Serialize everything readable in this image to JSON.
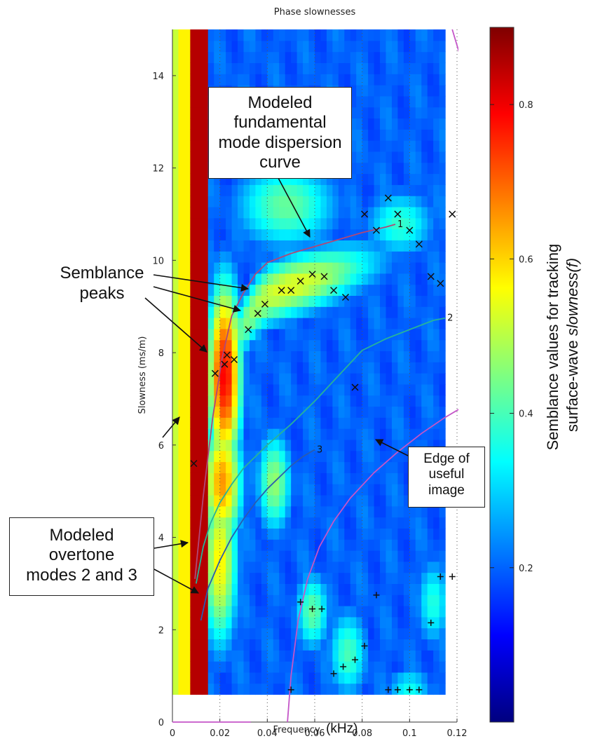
{
  "chart_data": {
    "type": "heatmap",
    "title": "Phase slownesses",
    "xlabel_main": "Frequency",
    "xlabel_unit": "(kHz)",
    "ylabel": "Slowness (ms/m)",
    "xlim": [
      0,
      0.12
    ],
    "ylim": [
      0,
      15
    ],
    "xticks": [
      "0",
      "0.02",
      "0.04",
      "0.06",
      "0.08",
      "0.1",
      "0.12"
    ],
    "yticks": [
      "0",
      "2",
      "4",
      "6",
      "8",
      "10",
      "12",
      "14"
    ],
    "colorbar": {
      "range": [
        0,
        0.9
      ],
      "ticks": [
        "0.2",
        "0.4",
        "0.6",
        "0.8"
      ],
      "colormap": "jet",
      "label_line1": "Semblance values for tracking",
      "label_line2_prefix": "surface-wave ",
      "label_line2_italic": "slowness(f)"
    },
    "data_extent": {
      "x": [
        0,
        0.115
      ],
      "y": [
        0.6,
        15
      ]
    },
    "grid": "dotted vertical at x ticks",
    "modes": [
      {
        "label": "1",
        "color": "#b04878",
        "x": [
          0.0095,
          0.013,
          0.017,
          0.021,
          0.025,
          0.03,
          0.035,
          0.04,
          0.05,
          0.06,
          0.07,
          0.08,
          0.09,
          0.094
        ],
        "y": [
          3.1,
          4.9,
          6.6,
          7.9,
          8.8,
          9.3,
          9.7,
          9.95,
          10.15,
          10.3,
          10.45,
          10.6,
          10.72,
          10.78
        ]
      },
      {
        "label": "2",
        "color": "#27b39a",
        "x": [
          0.01,
          0.013,
          0.016,
          0.02,
          0.025,
          0.03,
          0.04,
          0.05,
          0.06,
          0.07,
          0.08,
          0.09,
          0.1,
          0.11,
          0.115
        ],
        "y": [
          3.0,
          3.8,
          4.3,
          4.75,
          5.15,
          5.5,
          6.0,
          6.45,
          6.95,
          7.5,
          8.05,
          8.3,
          8.5,
          8.7,
          8.75
        ]
      },
      {
        "label": "3",
        "color": "#2a5bb0",
        "x": [
          0.012,
          0.015,
          0.02,
          0.025,
          0.03,
          0.035,
          0.04,
          0.045,
          0.05,
          0.055,
          0.06
        ],
        "y": [
          2.2,
          2.9,
          3.5,
          4.0,
          4.4,
          4.75,
          5.05,
          5.3,
          5.55,
          5.75,
          5.9
        ]
      }
    ],
    "edge_curves": [
      {
        "color": "#c455c8",
        "x": [
          0.0485,
          0.05,
          0.053,
          0.057,
          0.062,
          0.068,
          0.075,
          0.085,
          0.095,
          0.105,
          0.115,
          0.125
        ],
        "y": [
          0.0,
          1.0,
          2.2,
          3.1,
          3.8,
          4.35,
          4.85,
          5.4,
          5.85,
          6.25,
          6.6,
          6.9
        ]
      },
      {
        "color": "#c455c8",
        "x": [
          0.118,
          0.125
        ],
        "y": [
          15.0,
          13.8
        ]
      },
      {
        "color": "#c455c8",
        "x": [
          0,
          0.033
        ],
        "y": [
          0,
          0
        ]
      }
    ],
    "x_markers": {
      "x": [
        0.009,
        0.018,
        0.022,
        0.023,
        0.026,
        0.032,
        0.036,
        0.039,
        0.046,
        0.05,
        0.054,
        0.059,
        0.064,
        0.068,
        0.073,
        0.077,
        0.081,
        0.086,
        0.091,
        0.095,
        0.1,
        0.104,
        0.109,
        0.113,
        0.118
      ],
      "y": [
        5.6,
        7.55,
        7.75,
        7.95,
        7.85,
        8.5,
        8.85,
        9.05,
        9.35,
        9.35,
        9.55,
        9.7,
        9.65,
        9.35,
        9.2,
        7.25,
        11.0,
        10.65,
        11.35,
        11.0,
        10.65,
        10.35,
        9.65,
        9.5,
        11.0
      ]
    },
    "plus_markers": {
      "x": [
        0.05,
        0.054,
        0.059,
        0.063,
        0.068,
        0.072,
        0.077,
        0.081,
        0.086,
        0.091,
        0.095,
        0.1,
        0.104,
        0.109,
        0.113,
        0.118
      ],
      "y": [
        0.7,
        2.6,
        2.45,
        2.45,
        1.05,
        1.2,
        1.35,
        1.65,
        2.75,
        0.7,
        0.7,
        0.7,
        0.7,
        2.15,
        3.15,
        3.15
      ]
    }
  },
  "annotations": {
    "fundamental": [
      "Modeled",
      "fundamental",
      "mode dispersion",
      "curve"
    ],
    "peaks": [
      "Semblance",
      "peaks"
    ],
    "overtone": [
      "Modeled",
      "overtone",
      "modes 2 and 3"
    ],
    "edge": [
      "Edge of",
      "useful",
      "image"
    ]
  }
}
